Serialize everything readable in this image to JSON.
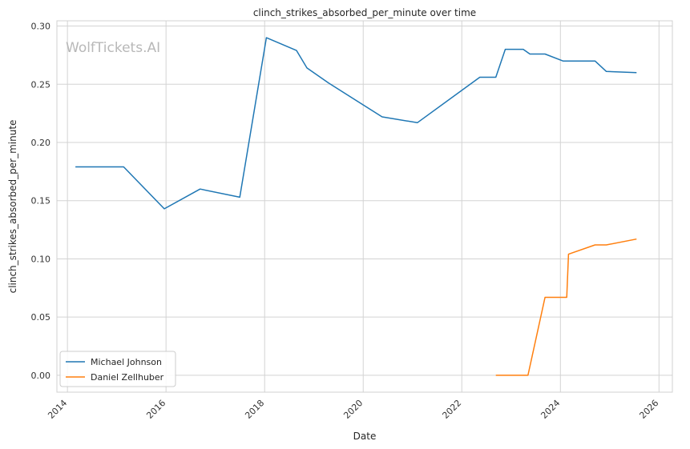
{
  "watermark": "WolfTickets.AI",
  "chart_data": {
    "type": "line",
    "title": "clinch_strikes_absorbed_per_minute over time",
    "xlabel": "Date",
    "ylabel": "clinch_strikes_absorbed_per_minute",
    "x_ticks": [
      "2014",
      "2016",
      "2018",
      "2020",
      "2022",
      "2024",
      "2026"
    ],
    "y_ticks": [
      "0.00",
      "0.05",
      "0.10",
      "0.15",
      "0.20",
      "0.25",
      "0.30"
    ],
    "xlim": [
      "2013-10-15",
      "2026-04-10"
    ],
    "ylim": [
      -0.0145,
      0.3045
    ],
    "grid": true,
    "legend_position": "lower-left",
    "series": [
      {
        "name": "Michael Johnson",
        "color": "#1f77b4",
        "points": [
          [
            "2014-03-01",
            0.179
          ],
          [
            "2015-02-21",
            0.179
          ],
          [
            "2015-12-19",
            0.143
          ],
          [
            "2016-09-10",
            0.16
          ],
          [
            "2017-07-01",
            0.153
          ],
          [
            "2018-01-14",
            0.29
          ],
          [
            "2018-08-25",
            0.279
          ],
          [
            "2018-11-10",
            0.264
          ],
          [
            "2019-04-20",
            0.251
          ],
          [
            "2020-05-20",
            0.222
          ],
          [
            "2021-02-06",
            0.217
          ],
          [
            "2022-05-14",
            0.256
          ],
          [
            "2022-07-09",
            0.256
          ],
          [
            "2022-09-10",
            0.256
          ],
          [
            "2022-11-19",
            0.28
          ],
          [
            "2023-04-01",
            0.28
          ],
          [
            "2023-05-20",
            0.276
          ],
          [
            "2023-09-09",
            0.276
          ],
          [
            "2024-01-20",
            0.27
          ],
          [
            "2024-09-14",
            0.27
          ],
          [
            "2024-12-07",
            0.261
          ],
          [
            "2025-07-19",
            0.26
          ]
        ]
      },
      {
        "name": "Daniel Zellhuber",
        "color": "#ff7f0e",
        "points": [
          [
            "2022-09-10",
            0.0
          ],
          [
            "2023-05-06",
            0.0
          ],
          [
            "2023-09-09",
            0.067
          ],
          [
            "2024-02-17",
            0.067
          ],
          [
            "2024-03-01",
            0.104
          ],
          [
            "2024-09-14",
            0.112
          ],
          [
            "2024-12-07",
            0.112
          ],
          [
            "2025-07-19",
            0.117
          ]
        ]
      }
    ]
  }
}
